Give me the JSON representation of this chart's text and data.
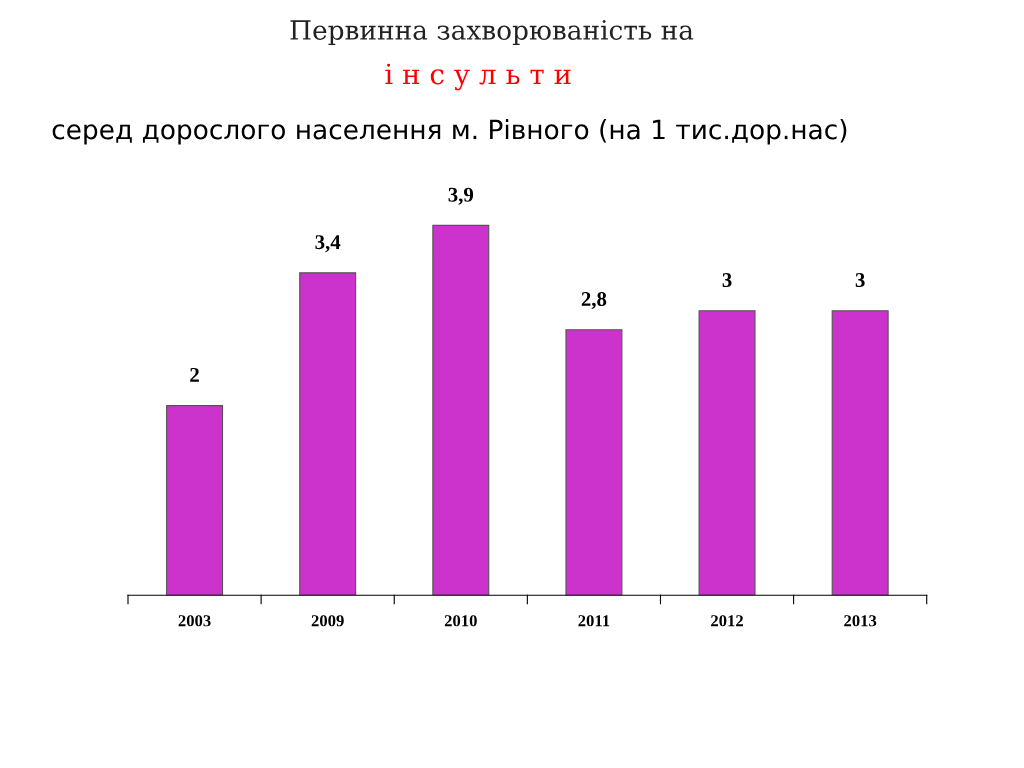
{
  "chart_data": {
    "type": "bar",
    "title": "Первинна захворюваність на",
    "subtitle": "і н с у л ь т и",
    "annotations": [
      "серед дорослого населення м. Рівного (на 1 тис.дор.нас)"
    ],
    "categories": [
      "2003",
      "2009",
      "2010",
      "2011",
      "2012",
      "2013"
    ],
    "values": [
      2,
      3.4,
      3.9,
      2.8,
      3,
      3
    ],
    "value_labels": [
      "2",
      "3,4",
      "3,9",
      "2,8",
      "3",
      "3"
    ],
    "color": "#cc33cc",
    "grid": false,
    "legend": false
  }
}
